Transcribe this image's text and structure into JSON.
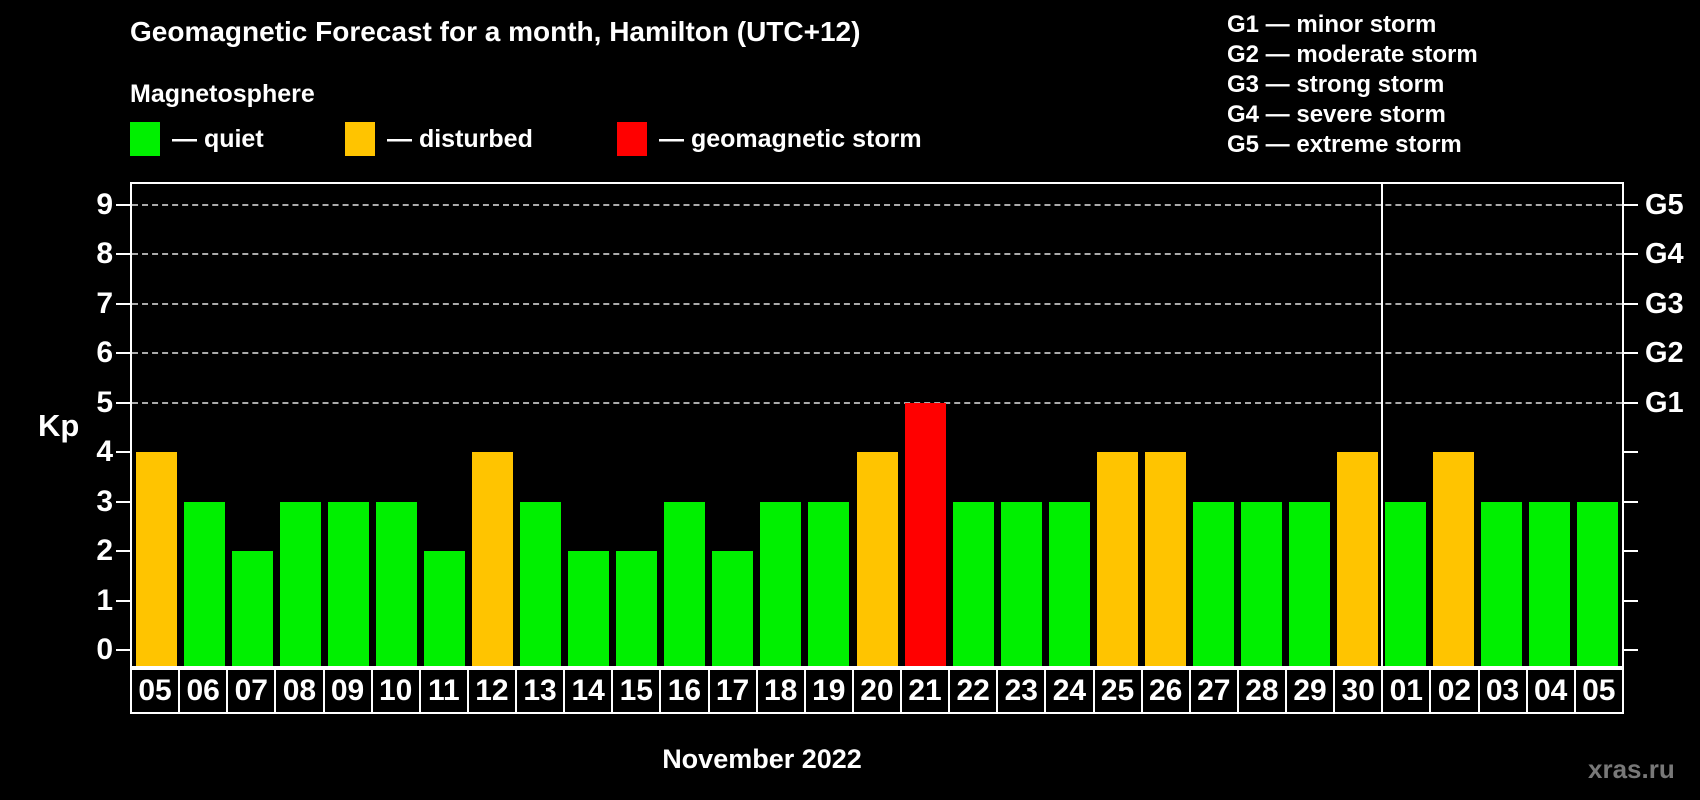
{
  "header": {
    "title": "Geomagnetic Forecast for a month, Hamilton (UTC+12)",
    "subtitle": "Magnetosphere",
    "legend": [
      {
        "key": "quiet",
        "label": "— quiet",
        "color": "#00f000"
      },
      {
        "key": "disturbed",
        "label": "— disturbed",
        "color": "#ffc400"
      },
      {
        "key": "storm",
        "label": "— geomagnetic storm",
        "color": "#ff0000"
      }
    ],
    "g_scale_legend": [
      "G1 — minor storm",
      "G2 — moderate storm",
      "G3 — strong storm",
      "G4 — severe storm",
      "G5 — extreme storm"
    ]
  },
  "chart_data": {
    "type": "bar",
    "title": "Geomagnetic Forecast for a month, Hamilton (UTC+12)",
    "ylabel": "Kp",
    "xlabel": "November 2022",
    "ylim": [
      0,
      9
    ],
    "yticks": [
      0,
      1,
      2,
      3,
      4,
      5,
      6,
      7,
      8,
      9
    ],
    "grid_levels": [
      5,
      6,
      7,
      8,
      9
    ],
    "grid_on": true,
    "legend_position": "top",
    "right_axis": [
      {
        "label": "G1",
        "kp": 5
      },
      {
        "label": "G2",
        "kp": 6
      },
      {
        "label": "G3",
        "kp": 7
      },
      {
        "label": "G4",
        "kp": 8
      },
      {
        "label": "G5",
        "kp": 9
      }
    ],
    "categories": [
      "05",
      "06",
      "07",
      "08",
      "09",
      "10",
      "11",
      "12",
      "13",
      "14",
      "15",
      "16",
      "17",
      "18",
      "19",
      "20",
      "21",
      "22",
      "23",
      "24",
      "25",
      "26",
      "27",
      "28",
      "29",
      "30",
      "01",
      "02",
      "03",
      "04",
      "05"
    ],
    "values": [
      4,
      3,
      2,
      3,
      3,
      3,
      2,
      4,
      3,
      2,
      2,
      3,
      2,
      3,
      3,
      4,
      5,
      3,
      3,
      3,
      4,
      4,
      3,
      3,
      3,
      4,
      3,
      4,
      3,
      3,
      3
    ],
    "statuses": [
      "disturbed",
      "quiet",
      "quiet",
      "quiet",
      "quiet",
      "quiet",
      "quiet",
      "disturbed",
      "quiet",
      "quiet",
      "quiet",
      "quiet",
      "quiet",
      "quiet",
      "quiet",
      "disturbed",
      "storm",
      "quiet",
      "quiet",
      "quiet",
      "disturbed",
      "disturbed",
      "quiet",
      "quiet",
      "quiet",
      "disturbed",
      "quiet",
      "disturbed",
      "quiet",
      "quiet",
      "quiet"
    ],
    "month_separator_after_index": 25,
    "colors": {
      "quiet": "#00f000",
      "disturbed": "#ffc400",
      "storm": "#ff0000",
      "grid": "#aaaaaa",
      "axis": "#ffffff"
    }
  },
  "footer": {
    "xaxis_title": "November 2022",
    "watermark": "xras.ru"
  }
}
